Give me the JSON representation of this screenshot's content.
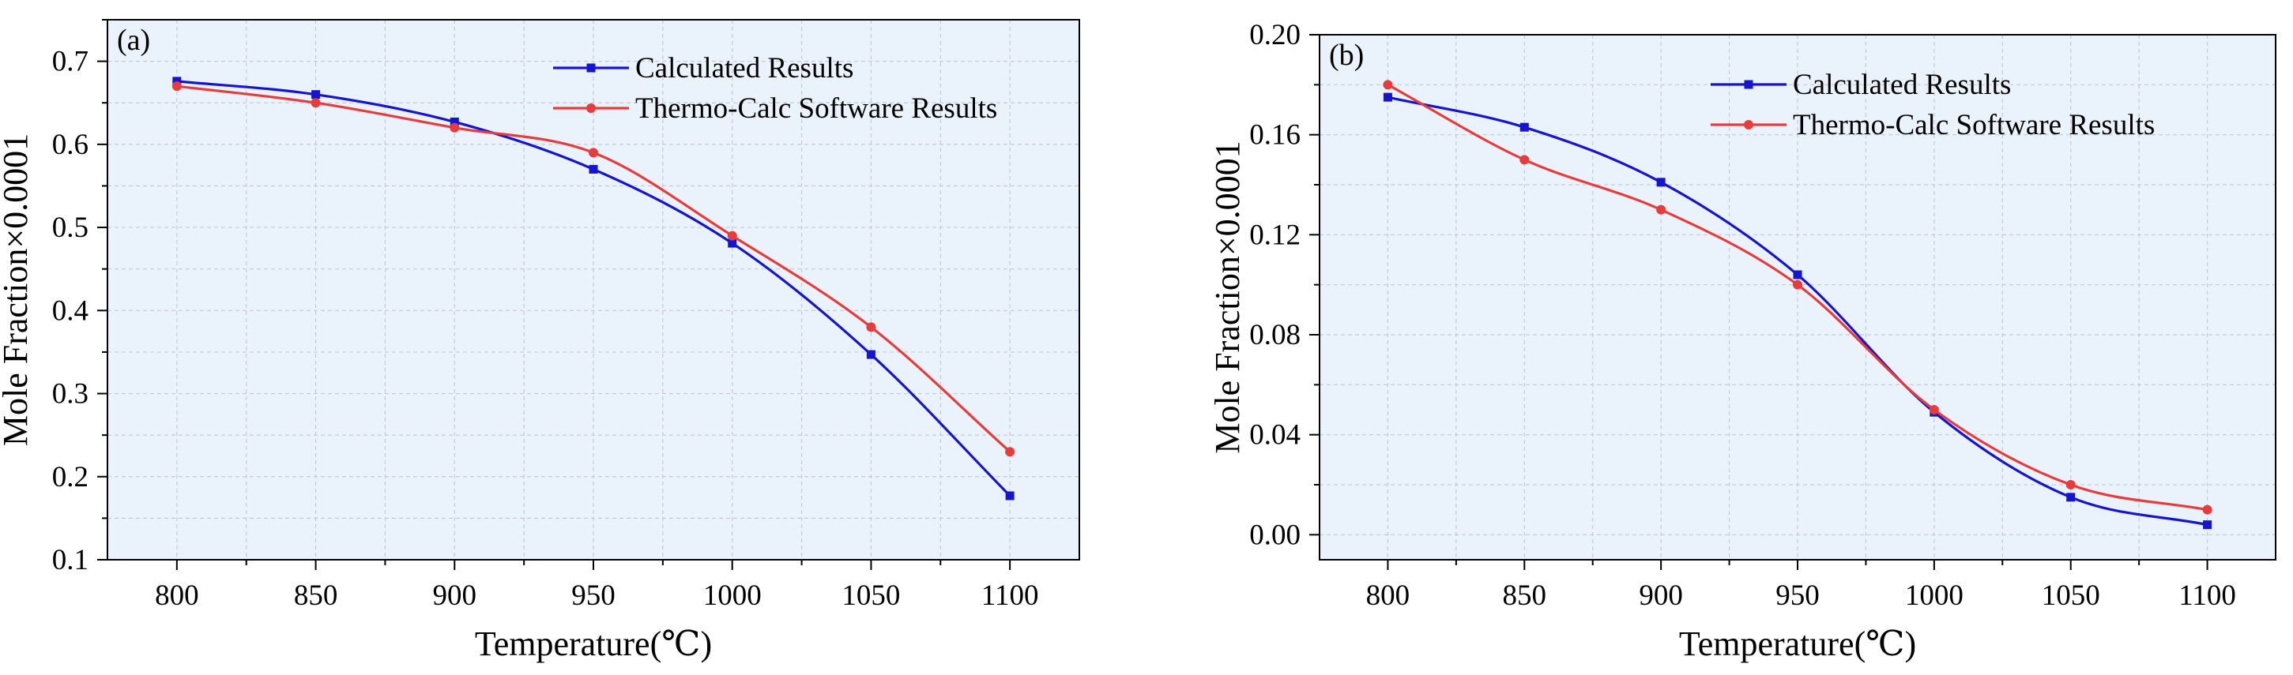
{
  "chart_data": [
    {
      "type": "line",
      "panel_label": "(a)",
      "xlabel": "Temperature(℃)",
      "ylabel": "Mole Fraction×0.0001",
      "xlim": [
        775,
        1125
      ],
      "ylim": [
        0.1,
        0.75
      ],
      "xticks": [
        800,
        850,
        900,
        950,
        1000,
        1050,
        1100
      ],
      "xtick_labels": [
        "800",
        "850",
        "900",
        "950",
        "1000",
        "1050",
        "1100"
      ],
      "yticks": [
        0.1,
        0.2,
        0.3,
        0.4,
        0.5,
        0.6,
        0.7
      ],
      "ytick_labels": [
        "0.1",
        "0.2",
        "0.3",
        "0.4",
        "0.5",
        "0.6",
        "0.7"
      ],
      "grid": true,
      "legend_position": "top-right",
      "x": [
        800,
        850,
        900,
        950,
        1000,
        1050,
        1100
      ],
      "series": [
        {
          "name": "Calculated Results",
          "color": "#1414d2",
          "marker": "square",
          "values": [
            0.676,
            0.66,
            0.627,
            0.57,
            0.481,
            0.347,
            0.177
          ]
        },
        {
          "name": "Thermo-Calc Software Results",
          "color": "#e83c3c",
          "marker": "circle",
          "values": [
            0.67,
            0.65,
            0.62,
            0.59,
            0.49,
            0.38,
            0.23
          ]
        }
      ]
    },
    {
      "type": "line",
      "panel_label": "(b)",
      "xlabel": "Temperature(℃)",
      "ylabel": "Mole Fraction×0.0001",
      "xlim": [
        775,
        1125
      ],
      "ylim": [
        -0.01,
        0.2
      ],
      "xticks": [
        800,
        850,
        900,
        950,
        1000,
        1050,
        1100
      ],
      "xtick_labels": [
        "800",
        "850",
        "900",
        "950",
        "1000",
        "1050",
        "1100"
      ],
      "yticks": [
        0.0,
        0.04,
        0.08,
        0.12,
        0.16,
        0.2
      ],
      "ytick_labels": [
        "0.00",
        "0.04",
        "0.08",
        "0.12",
        "0.16",
        "0.20"
      ],
      "grid": true,
      "legend_position": "top-right",
      "x": [
        800,
        850,
        900,
        950,
        1000,
        1050,
        1100
      ],
      "series": [
        {
          "name": "Calculated Results",
          "color": "#1414d2",
          "marker": "square",
          "values": [
            0.175,
            0.163,
            0.141,
            0.104,
            0.049,
            0.015,
            0.004
          ]
        },
        {
          "name": "Thermo-Calc Software Results",
          "color": "#e83c3c",
          "marker": "circle",
          "values": [
            0.18,
            0.15,
            0.13,
            0.1,
            0.05,
            0.02,
            0.01
          ]
        }
      ]
    }
  ],
  "colors": {
    "plot_background": "#eaf3fc",
    "grid": "#c4cad2",
    "axis": "#000000"
  }
}
